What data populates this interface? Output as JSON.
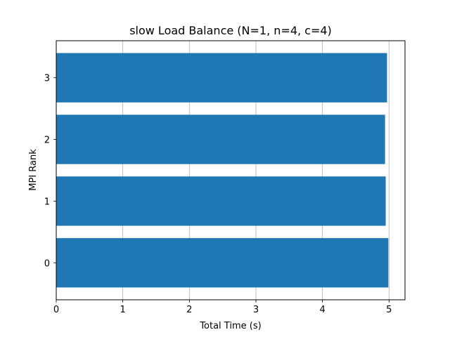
{
  "chart_data": {
    "type": "bar",
    "orientation": "horizontal",
    "title": "slow Load Balance (N=1, n=4, c=4)",
    "xlabel": "Total Time (s)",
    "ylabel": "MPI Rank",
    "categories": [
      "0",
      "1",
      "2",
      "3"
    ],
    "values": [
      4.99,
      4.95,
      4.94,
      4.97
    ],
    "xlim": [
      0,
      5.24
    ],
    "x_ticks": [
      "0",
      "1",
      "2",
      "3",
      "4",
      "5"
    ],
    "grid": "x",
    "legend": "none",
    "bar_color": "#1f77b4",
    "grid_color": "#b0b0b0"
  }
}
